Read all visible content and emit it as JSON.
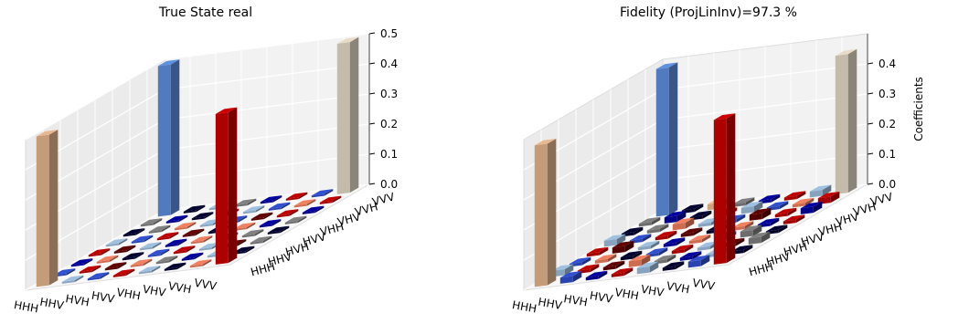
{
  "chart_data": [
    {
      "type": "bar3d",
      "title": "True State real",
      "categories": [
        "HHH",
        "HHV",
        "HVH",
        "HVV",
        "VHH",
        "VHV",
        "VVH",
        "VVV"
      ],
      "zlim": [
        0,
        0.5
      ],
      "zticks": [
        {
          "value": 0,
          "label": "0.0"
        },
        0.1,
        0.2,
        0.3,
        0.4,
        0.5
      ],
      "values": [
        [
          0.5,
          0,
          0,
          0,
          0,
          0,
          0,
          0.5
        ],
        [
          0,
          0,
          0,
          0,
          0,
          0,
          0,
          0
        ],
        [
          0,
          0,
          0,
          0,
          0,
          0,
          0,
          0
        ],
        [
          0,
          0,
          0,
          0,
          0,
          0,
          0,
          0
        ],
        [
          0,
          0,
          0,
          0,
          0,
          0,
          0,
          0
        ],
        [
          0,
          0,
          0,
          0,
          0,
          0,
          0,
          0
        ],
        [
          0,
          0,
          0,
          0,
          0,
          0,
          0,
          0
        ],
        [
          0.5,
          0,
          0,
          0,
          0,
          0,
          0,
          0.5
        ]
      ],
      "colors": [
        [
          "#e8b890",
          "#a0c0e0",
          "#3050d0",
          "#c00000",
          "#a0c0e0",
          "#000030",
          "#f08060",
          "#cc0000"
        ],
        [
          "#3050d0",
          "#c00000",
          "#600000",
          "#f08060",
          "#808080",
          "#0000a0",
          "#a0c0e0",
          "#000030"
        ],
        [
          "#0000a0",
          "#f08060",
          "#000030",
          "#3050d0",
          "#c00000",
          "#a0c0e0",
          "#600000",
          "#808080"
        ],
        [
          "#c00000",
          "#600000",
          "#a0c0e0",
          "#0000a0",
          "#f08060",
          "#3050d0",
          "#808080",
          "#000030"
        ],
        [
          "#a0c0e0",
          "#3050d0",
          "#c00000",
          "#600000",
          "#000030",
          "#f08060",
          "#0000a0",
          "#808080"
        ],
        [
          "#000030",
          "#808080",
          "#f08060",
          "#a0c0e0",
          "#3050d0",
          "#600000",
          "#c00000",
          "#0000a0"
        ],
        [
          "#808080",
          "#0000a0",
          "#000030",
          "#c00000",
          "#a0c0e0",
          "#3050d0",
          "#f08060",
          "#c00000"
        ],
        [
          "#6090e0",
          "#000030",
          "#a0c0e0",
          "#808080",
          "#0000a0",
          "#c00000",
          "#3050d0",
          "#e8dcc8"
        ]
      ]
    },
    {
      "type": "bar3d",
      "title": "Fidelity (ProjLinInv)=97.3 %",
      "zlabel": "Coefficients",
      "categories": [
        "HHH",
        "HHV",
        "HVH",
        "HVV",
        "VHH",
        "VHV",
        "VVH",
        "VVV"
      ],
      "zlim": [
        0,
        0.5
      ],
      "zticks": [
        {
          "value": 0,
          "label": "0.0"
        },
        0.1,
        0.2,
        0.3,
        0.4
      ],
      "values": [
        [
          0.47,
          0.02,
          0.01,
          0.01,
          0.02,
          0.01,
          0.02,
          0.48
        ],
        [
          0.02,
          0.01,
          0.01,
          0.02,
          0.01,
          0.01,
          0.01,
          0.01
        ],
        [
          0.01,
          0.01,
          0.01,
          0.01,
          0.01,
          0.01,
          0.01,
          0.02
        ],
        [
          0.01,
          0.02,
          0.01,
          0.01,
          0.01,
          0.01,
          0.02,
          0.01
        ],
        [
          0.02,
          0.01,
          0.01,
          0.01,
          0.01,
          0.01,
          0.01,
          0.01
        ],
        [
          0.01,
          0.01,
          0.02,
          0.01,
          0.01,
          0.02,
          0.01,
          0.02
        ],
        [
          0.01,
          0.02,
          0.01,
          0.01,
          0.02,
          0.01,
          0.01,
          0.02
        ],
        [
          0.49,
          0.01,
          0.02,
          0.01,
          0.01,
          0.01,
          0.02,
          0.46
        ]
      ],
      "colors": [
        [
          "#e8b890",
          "#3050d0",
          "#0000a0",
          "#c00000",
          "#a0c0e0",
          "#000030",
          "#3050d0",
          "#cc0000"
        ],
        [
          "#a0c0e0",
          "#c00000",
          "#600000",
          "#f08060",
          "#808080",
          "#0000a0",
          "#a0c0e0",
          "#000030"
        ],
        [
          "#3050d0",
          "#f08060",
          "#000030",
          "#3050d0",
          "#c00000",
          "#a0c0e0",
          "#600000",
          "#808080"
        ],
        [
          "#c00000",
          "#600000",
          "#a0c0e0",
          "#0000a0",
          "#f08060",
          "#3050d0",
          "#808080",
          "#000030"
        ],
        [
          "#a0c0e0",
          "#3050d0",
          "#c00000",
          "#600000",
          "#000030",
          "#f08060",
          "#0000a0",
          "#c00000"
        ],
        [
          "#000030",
          "#808080",
          "#f08060",
          "#a0c0e0",
          "#3050d0",
          "#600000",
          "#c00000",
          "#0000a0"
        ],
        [
          "#808080",
          "#0000a0",
          "#000030",
          "#c00000",
          "#a0c0e0",
          "#3050d0",
          "#f08060",
          "#c00000"
        ],
        [
          "#6090e0",
          "#000030",
          "#f0c090",
          "#808080",
          "#0000a0",
          "#c00000",
          "#a0c0e0",
          "#e8dcc8"
        ]
      ]
    }
  ]
}
